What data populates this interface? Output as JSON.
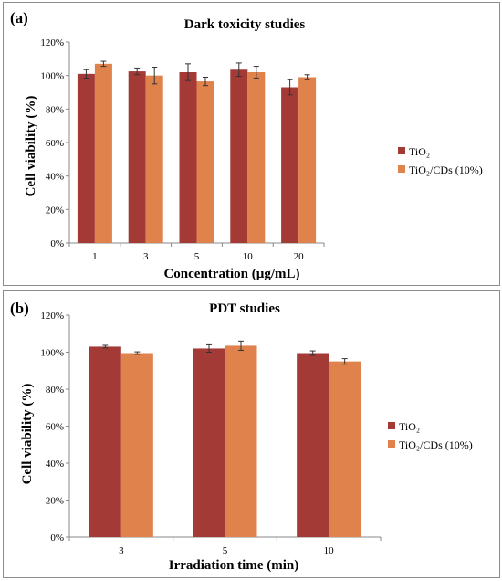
{
  "colors": {
    "tio2": "#a33a36",
    "tio2_cds": "#e0824c",
    "axis": "#888888"
  },
  "chart_data": [
    {
      "type": "bar",
      "panel_label": "(a)",
      "title": "Dark toxicity studies",
      "xlabel": "Concentration (µg/mL)",
      "ylabel": "Cell viability (%)",
      "categories": [
        "1",
        "3",
        "5",
        "10",
        "20"
      ],
      "ylim": [
        0,
        120
      ],
      "yticks": [
        "0%",
        "20%",
        "40%",
        "60%",
        "80%",
        "100%",
        "120%"
      ],
      "grid": false,
      "legend_position": "right",
      "series": [
        {
          "name": "TiO₂",
          "values": [
            101,
            102.5,
            102,
            103.5,
            93
          ],
          "errors": [
            2.5,
            2,
            5,
            4,
            4.5
          ]
        },
        {
          "name": "TiO₂/CDs (10%)",
          "values": [
            107,
            100,
            96.5,
            102,
            99
          ],
          "errors": [
            1.5,
            5,
            2.5,
            3.5,
            1.5
          ]
        }
      ]
    },
    {
      "type": "bar",
      "panel_label": "(b)",
      "title": "PDT studies",
      "xlabel": "Irradiation time (min)",
      "ylabel": "Cell viability (%)",
      "categories": [
        "3",
        "5",
        "10"
      ],
      "ylim": [
        0,
        120
      ],
      "yticks": [
        "0%",
        "20%",
        "40%",
        "60%",
        "80%",
        "100%",
        "120%"
      ],
      "grid": false,
      "legend_position": "right",
      "series": [
        {
          "name": "TiO₂",
          "values": [
            103,
            102,
            99.5
          ],
          "errors": [
            0.7,
            2,
            1.2
          ]
        },
        {
          "name": "TiO₂/CDs (10%)",
          "values": [
            99.5,
            103.5,
            95
          ],
          "errors": [
            0.7,
            2.5,
            1.5
          ]
        }
      ]
    }
  ]
}
